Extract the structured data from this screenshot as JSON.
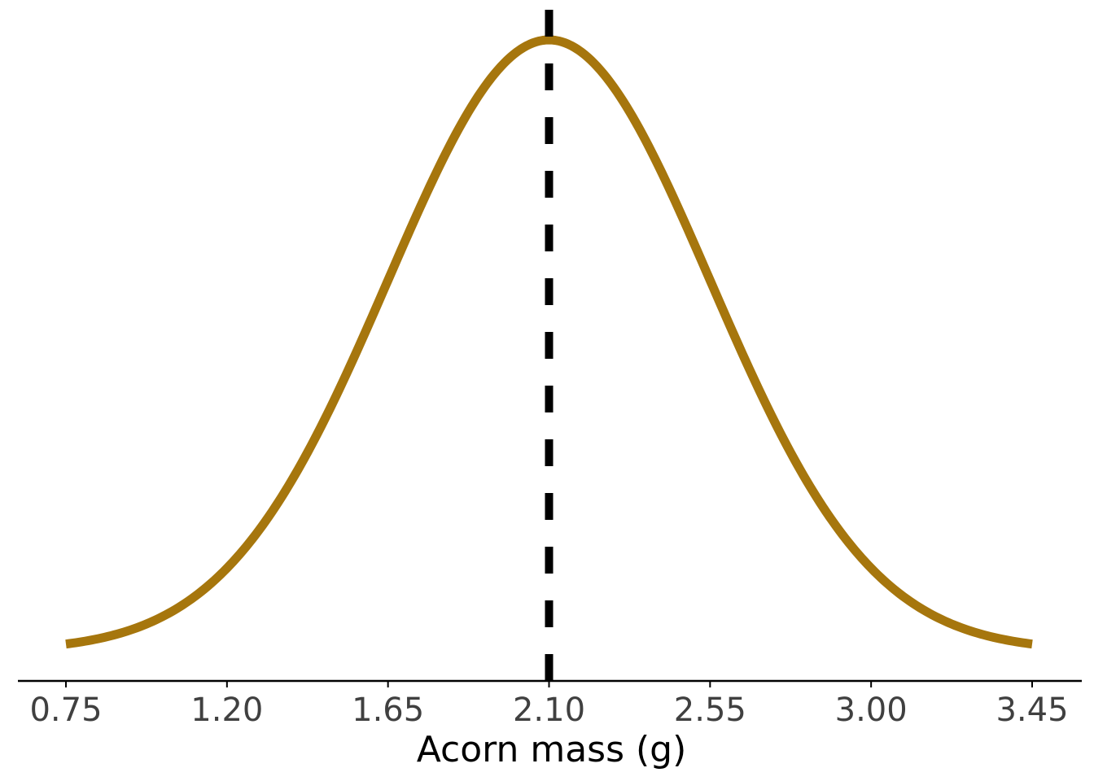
{
  "chart_data": {
    "type": "line",
    "title": "",
    "xlabel": "Acorn mass (g)",
    "ylabel": "",
    "xlim": [
      0.75,
      3.45
    ],
    "x_ticks": [
      "0.75",
      "1.20",
      "1.65",
      "2.10",
      "2.55",
      "3.00",
      "3.45"
    ],
    "y_axis_visible": false,
    "grid": false,
    "legend": "none",
    "series": [
      {
        "distribution": "normal",
        "mean": 2.1,
        "sd": 0.45,
        "x_range": [
          0.75,
          3.45
        ],
        "color": "#A6760D"
      }
    ],
    "reference_line": {
      "x": 2.1,
      "style": "dashed",
      "color": "#000000"
    }
  }
}
